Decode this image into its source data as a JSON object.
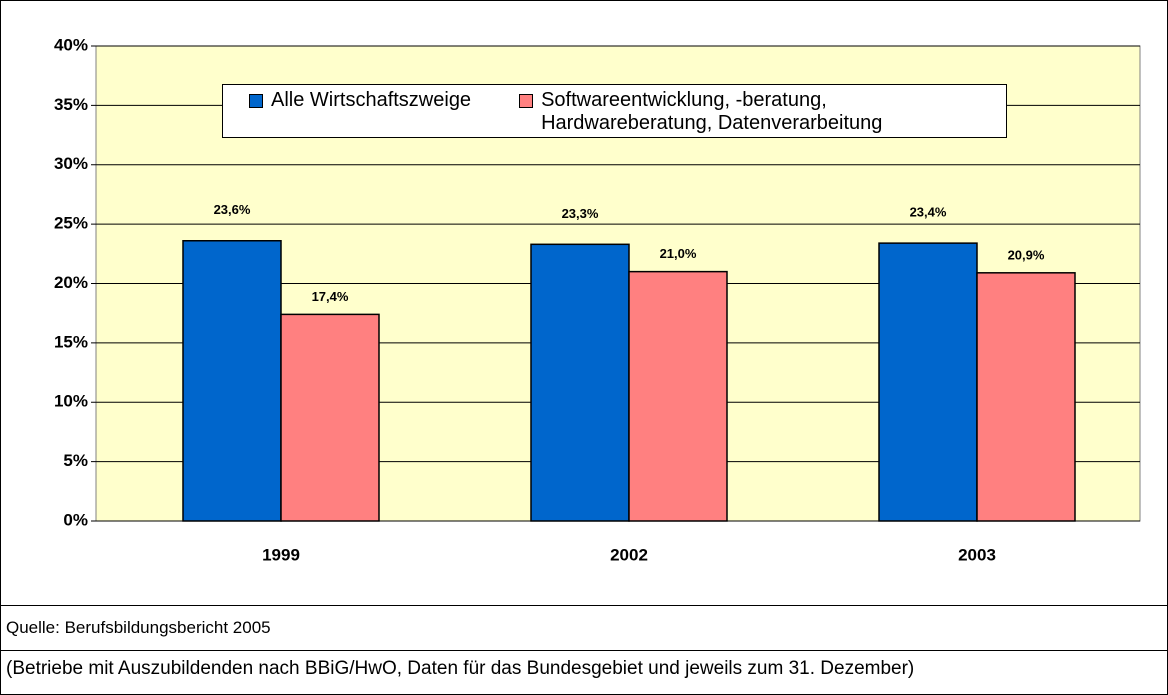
{
  "chart_data": {
    "type": "bar",
    "categories": [
      "1999",
      "2002",
      "2003"
    ],
    "series": [
      {
        "name": "Alle Wirtschaftszweige",
        "color": "#0066cc",
        "values": [
          23.6,
          23.3,
          23.4
        ],
        "value_labels": [
          "23,6%",
          "23,3%",
          "23,4%"
        ]
      },
      {
        "name": "Softwareentwicklung, -beratung, Hardwareberatung, Datenverarbeitung",
        "color": "#ff8080",
        "values": [
          17.4,
          21.0,
          20.9
        ],
        "value_labels": [
          "17,4%",
          "21,0%",
          "20,9%"
        ]
      }
    ],
    "ylim": [
      0,
      40
    ],
    "yticks": [
      {
        "value": 0,
        "label": "0%"
      },
      {
        "value": 5,
        "label": "5%"
      },
      {
        "value": 10,
        "label": "10%"
      },
      {
        "value": 15,
        "label": "15%"
      },
      {
        "value": 20,
        "label": "20%"
      },
      {
        "value": 25,
        "label": "25%"
      },
      {
        "value": 30,
        "label": "30%"
      },
      {
        "value": 35,
        "label": "35%"
      },
      {
        "value": 40,
        "label": "40%"
      }
    ],
    "grid": true,
    "plot_background": "#ffffcc"
  },
  "source": "Quelle: Berufsbildungsbericht 2005",
  "note": "(Betriebe mit Auszubildenden nach BBiG/HwO, Daten für das Bundesgebiet und jeweils zum 31. Dezember)"
}
